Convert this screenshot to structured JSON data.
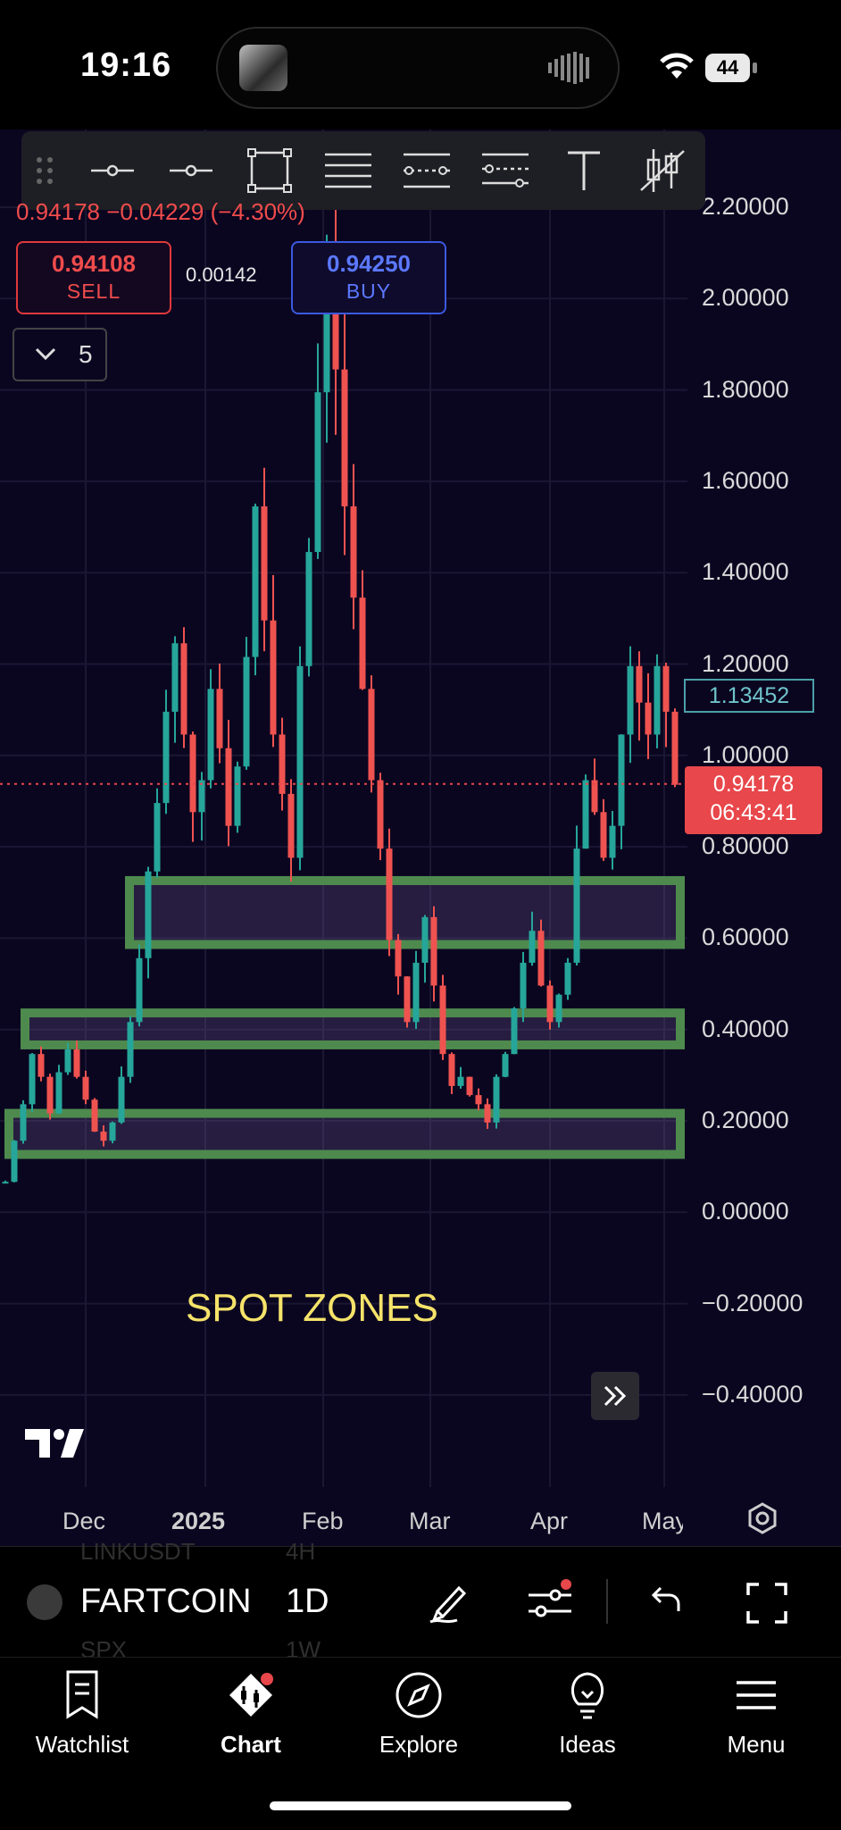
{
  "status_bar": {
    "time": "19:16",
    "battery": "44"
  },
  "toolbar": {
    "tools": [
      "trend-line-tool",
      "horizontal-ray-tool",
      "rectangle-tool",
      "parallel-channel-tool",
      "regression-channel-tool",
      "fib-channel-tool",
      "text-tool",
      "candlestick-tool"
    ]
  },
  "quote": {
    "line": "0.94178 −0.04229 (−4.30%)",
    "sell_price": "0.94108",
    "sell_label": "SELL",
    "spread": "0.00142",
    "buy_price": "0.94250",
    "buy_label": "BUY",
    "indicators_count": "5"
  },
  "chart_data": {
    "type": "candlestick",
    "y_ticks": [
      "2.20000",
      "2.00000",
      "1.80000",
      "1.60000",
      "1.40000",
      "1.20000",
      "1.00000",
      "0.80000",
      "0.60000",
      "0.40000",
      "0.20000",
      "0.00000",
      "−0.20000",
      "−0.40000"
    ],
    "ylim": [
      -0.5,
      2.25
    ],
    "x_ticks": [
      "Dec",
      "2025",
      "Feb",
      "Mar",
      "Apr",
      "May"
    ],
    "current_price": "0.94178",
    "countdown": "06:43:41",
    "high_marker": "1.13452",
    "zones": [
      {
        "low": 0.59,
        "high": 0.73
      },
      {
        "low": 0.37,
        "high": 0.44
      },
      {
        "low": 0.13,
        "high": 0.22
      }
    ],
    "series": [
      0.07,
      0.16,
      0.24,
      0.35,
      0.3,
      0.22,
      0.31,
      0.36,
      0.3,
      0.25,
      0.18,
      0.16,
      0.2,
      0.3,
      0.42,
      0.56,
      0.75,
      0.9,
      1.1,
      1.25,
      1.05,
      0.88,
      0.95,
      1.15,
      1.02,
      0.85,
      0.98,
      1.22,
      1.55,
      1.3,
      1.05,
      0.92,
      0.78,
      1.2,
      1.45,
      1.8,
      2.1,
      1.85,
      1.55,
      1.35,
      1.15,
      0.95,
      0.8,
      0.6,
      0.52,
      0.42,
      0.55,
      0.65,
      0.5,
      0.35,
      0.28,
      0.3,
      0.26,
      0.24,
      0.2,
      0.3,
      0.35,
      0.45,
      0.55,
      0.62,
      0.5,
      0.42,
      0.48,
      0.55,
      0.8,
      0.95,
      0.88,
      0.78,
      0.85,
      1.05,
      1.2,
      1.12,
      1.05,
      1.2,
      1.1,
      0.94
    ]
  },
  "annotations": {
    "spot_zones": "SPOT ZONES"
  },
  "symbol_bar": {
    "symbol": "FARTCOIN",
    "interval": "1D",
    "ghost_symbol_top": "LINKUSDT",
    "ghost_interval_top": "4H",
    "ghost_symbol_bottom": "SPX",
    "ghost_interval_bottom": "1W"
  },
  "tabs": [
    {
      "label": "Watchlist",
      "icon": "watchlist-icon"
    },
    {
      "label": "Chart",
      "icon": "chart-icon"
    },
    {
      "label": "Explore",
      "icon": "compass-icon"
    },
    {
      "label": "Ideas",
      "icon": "lightbulb-icon"
    },
    {
      "label": "Menu",
      "icon": "hamburger-icon"
    }
  ],
  "colors": {
    "background": "#0b0620",
    "up": "#26a69a",
    "down": "#ef5350",
    "zone_border": "#4e8a4e",
    "accent_red": "#e8474b",
    "accent_blue": "#3b59e0"
  }
}
